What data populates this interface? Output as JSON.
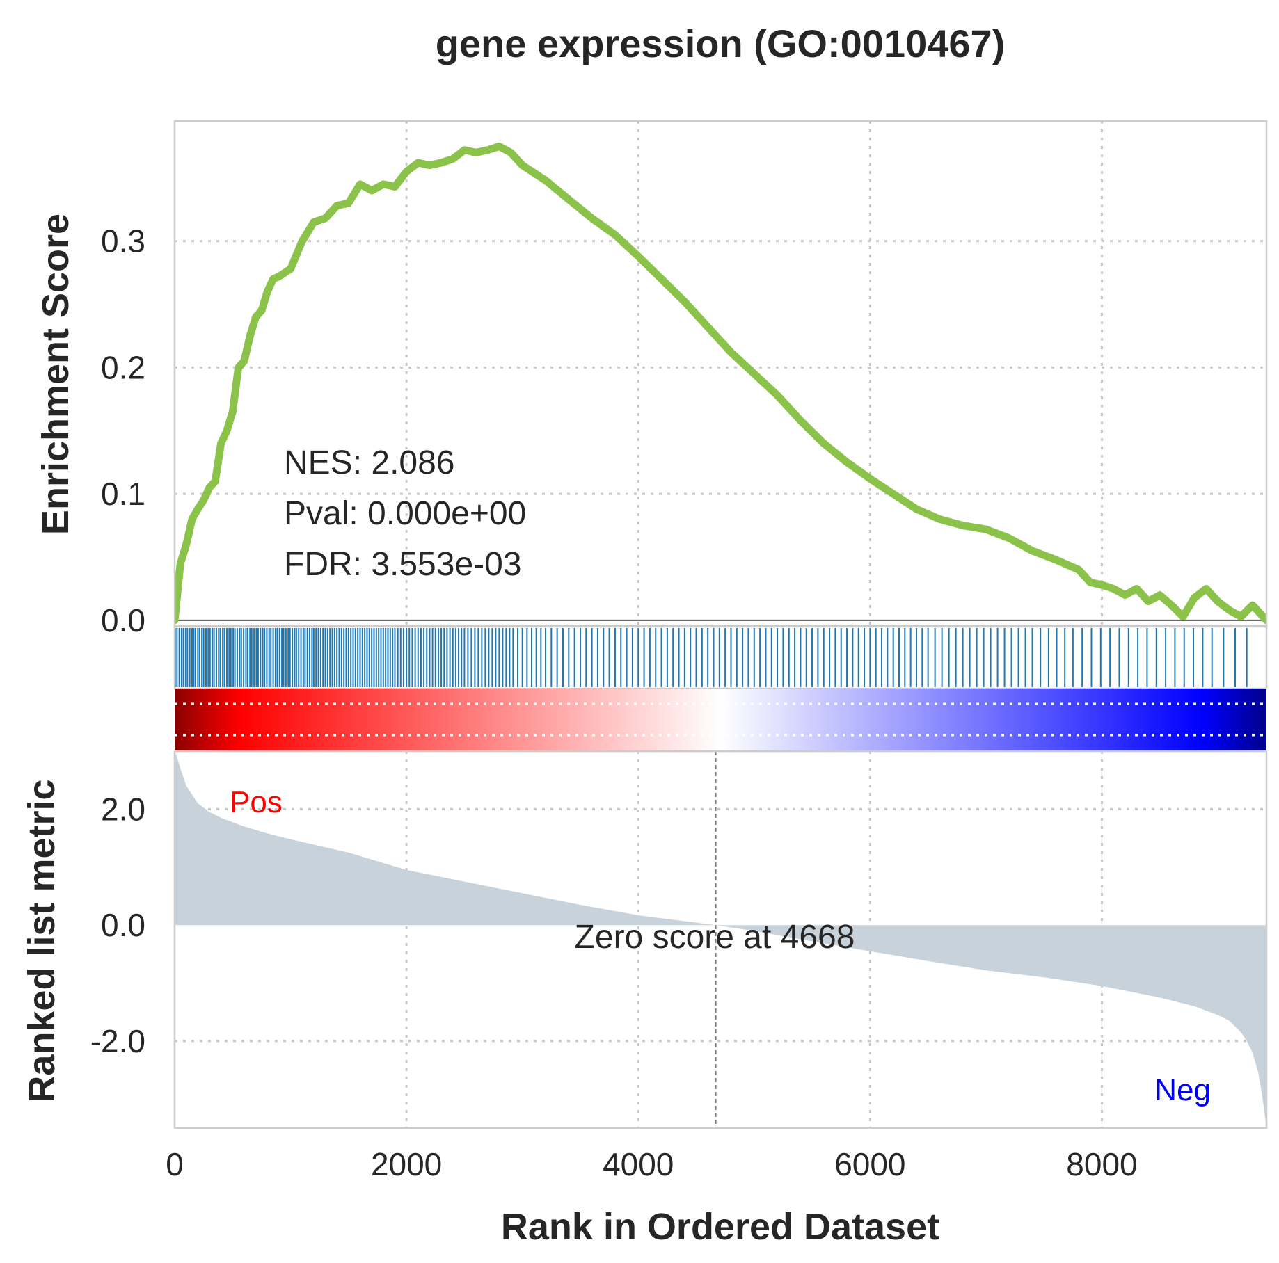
{
  "chart_data": {
    "type": "line",
    "title": "gene expression (GO:0010467)",
    "xlabel": "Rank in Ordered Dataset",
    "xlim": [
      0,
      9420
    ],
    "x_ticks": [
      "0",
      "2000",
      "4000",
      "6000",
      "8000"
    ],
    "x_tick_values": [
      0,
      2000,
      4000,
      6000,
      8000
    ],
    "grid": true,
    "panels": {
      "enrichment": {
        "ylabel": "Enrichment Score",
        "ylim": [
          -0.005,
          0.395
        ],
        "y_ticks": [
          "0.0",
          "0.1",
          "0.2",
          "0.3"
        ],
        "y_tick_values": [
          0.0,
          0.1,
          0.2,
          0.3
        ],
        "line_color": "#8bc34a",
        "series": {
          "x": [
            0,
            50,
            100,
            150,
            200,
            250,
            300,
            350,
            400,
            450,
            500,
            550,
            600,
            650,
            700,
            750,
            800,
            850,
            900,
            950,
            1000,
            1100,
            1200,
            1300,
            1400,
            1500,
            1600,
            1700,
            1800,
            1900,
            2000,
            2100,
            2200,
            2300,
            2400,
            2500,
            2600,
            2700,
            2800,
            2900,
            3000,
            3200,
            3400,
            3600,
            3800,
            4000,
            4200,
            4400,
            4600,
            4800,
            5000,
            5200,
            5400,
            5600,
            5800,
            6000,
            6200,
            6400,
            6600,
            6800,
            7000,
            7200,
            7400,
            7600,
            7800,
            7900,
            8000,
            8100,
            8200,
            8300,
            8400,
            8500,
            8600,
            8700,
            8800,
            8900,
            9000,
            9100,
            9200,
            9300,
            9420
          ],
          "y": [
            0.0,
            0.045,
            0.06,
            0.08,
            0.088,
            0.095,
            0.105,
            0.11,
            0.14,
            0.15,
            0.165,
            0.2,
            0.205,
            0.225,
            0.24,
            0.245,
            0.26,
            0.27,
            0.272,
            0.275,
            0.278,
            0.3,
            0.315,
            0.318,
            0.328,
            0.33,
            0.345,
            0.34,
            0.345,
            0.343,
            0.355,
            0.362,
            0.36,
            0.362,
            0.365,
            0.372,
            0.37,
            0.372,
            0.375,
            0.37,
            0.36,
            0.348,
            0.333,
            0.318,
            0.305,
            0.288,
            0.27,
            0.252,
            0.232,
            0.212,
            0.195,
            0.178,
            0.158,
            0.14,
            0.125,
            0.112,
            0.1,
            0.088,
            0.08,
            0.075,
            0.072,
            0.065,
            0.055,
            0.048,
            0.04,
            0.03,
            0.028,
            0.025,
            0.02,
            0.025,
            0.015,
            0.02,
            0.012,
            0.003,
            0.018,
            0.025,
            0.015,
            0.008,
            0.003,
            0.012,
            0.0
          ]
        }
      },
      "hits": {
        "color": "#1f77b4",
        "positions": [
          5,
          20,
          40,
          60,
          75,
          95,
          110,
          130,
          150,
          165,
          180,
          200,
          215,
          235,
          250,
          270,
          290,
          305,
          325,
          340,
          360,
          380,
          395,
          415,
          430,
          450,
          470,
          485,
          505,
          520,
          540,
          560,
          575,
          595,
          615,
          630,
          650,
          665,
          685,
          705,
          720,
          740,
          760,
          775,
          795,
          815,
          830,
          850,
          870,
          885,
          905,
          925,
          940,
          960,
          980,
          995,
          1015,
          1035,
          1050,
          1070,
          1090,
          1110,
          1125,
          1145,
          1165,
          1185,
          1200,
          1220,
          1240,
          1260,
          1280,
          1300,
          1320,
          1340,
          1360,
          1380,
          1400,
          1420,
          1440,
          1460,
          1480,
          1500,
          1520,
          1540,
          1560,
          1580,
          1600,
          1620,
          1640,
          1660,
          1680,
          1700,
          1720,
          1740,
          1760,
          1780,
          1800,
          1820,
          1840,
          1860,
          1880,
          1900,
          1925,
          1950,
          1975,
          2000,
          2025,
          2050,
          2075,
          2100,
          2125,
          2150,
          2175,
          2200,
          2225,
          2250,
          2275,
          2300,
          2325,
          2350,
          2375,
          2400,
          2425,
          2450,
          2475,
          2500,
          2530,
          2560,
          2590,
          2620,
          2650,
          2680,
          2710,
          2740,
          2770,
          2800,
          2830,
          2860,
          2890,
          2920,
          2960,
          3000,
          3040,
          3080,
          3120,
          3160,
          3200,
          3250,
          3300,
          3350,
          3400,
          3450,
          3500,
          3550,
          3600,
          3650,
          3700,
          3750,
          3800,
          3850,
          3900,
          3950,
          4000,
          4050,
          4100,
          4150,
          4200,
          4250,
          4300,
          4350,
          4400,
          4450,
          4500,
          4550,
          4600,
          4650,
          4700,
          4750,
          4800,
          4850,
          4900,
          4950,
          5000,
          5050,
          5100,
          5150,
          5200,
          5250,
          5300,
          5350,
          5400,
          5450,
          5500,
          5550,
          5600,
          5650,
          5700,
          5750,
          5800,
          5850,
          5900,
          5950,
          6000,
          6050,
          6100,
          6150,
          6200,
          6250,
          6300,
          6350,
          6400,
          6450,
          6500,
          6560,
          6620,
          6680,
          6740,
          6800,
          6860,
          6920,
          6980,
          7040,
          7100,
          7160,
          7220,
          7280,
          7340,
          7400,
          7470,
          7540,
          7610,
          7680,
          7750,
          7830,
          7910,
          7990,
          8070,
          8150,
          8230,
          8310,
          8390,
          8470,
          8550,
          8630,
          8710,
          8790,
          8870,
          8950,
          9050,
          9150,
          9250
        ]
      },
      "ranked_metric": {
        "ylabel": "Ranked list metric",
        "ylim": [
          -3.5,
          3.0
        ],
        "y_ticks": [
          "2.0",
          "0.0",
          "-2.0"
        ],
        "y_tick_values": [
          2.0,
          0.0,
          -2.0
        ],
        "fill_color": "#c8d2da",
        "series": {
          "x": [
            0,
            20,
            50,
            100,
            200,
            300,
            400,
            600,
            800,
            1000,
            1500,
            2000,
            2500,
            3000,
            3500,
            4000,
            4668,
            5000,
            5500,
            6000,
            6500,
            7000,
            7500,
            8000,
            8500,
            8800,
            9000,
            9100,
            9200,
            9250,
            9300,
            9350,
            9380,
            9400,
            9420
          ],
          "y": [
            3.0,
            2.9,
            2.7,
            2.4,
            2.1,
            1.95,
            1.85,
            1.7,
            1.58,
            1.48,
            1.25,
            0.95,
            0.75,
            0.55,
            0.35,
            0.17,
            0.0,
            -0.1,
            -0.28,
            -0.45,
            -0.62,
            -0.78,
            -0.9,
            -1.05,
            -1.25,
            -1.4,
            -1.55,
            -1.65,
            -1.85,
            -2.0,
            -2.2,
            -2.55,
            -2.9,
            -3.2,
            -3.5
          ]
        },
        "zero_cross": 4668,
        "zero_label": "Zero score at 4668",
        "pos_label": "Pos",
        "neg_label": "Neg",
        "pos_color": "#ff0000",
        "neg_color": "#0000ff"
      }
    },
    "stats": {
      "nes": "NES: 2.086",
      "pval": "Pval: 0.000e+00",
      "fdr": "FDR: 3.553e-03"
    },
    "colorbar": [
      "#8b0000",
      "#ff0000",
      "#ffffff",
      "#0000ff",
      "#00008b"
    ]
  }
}
